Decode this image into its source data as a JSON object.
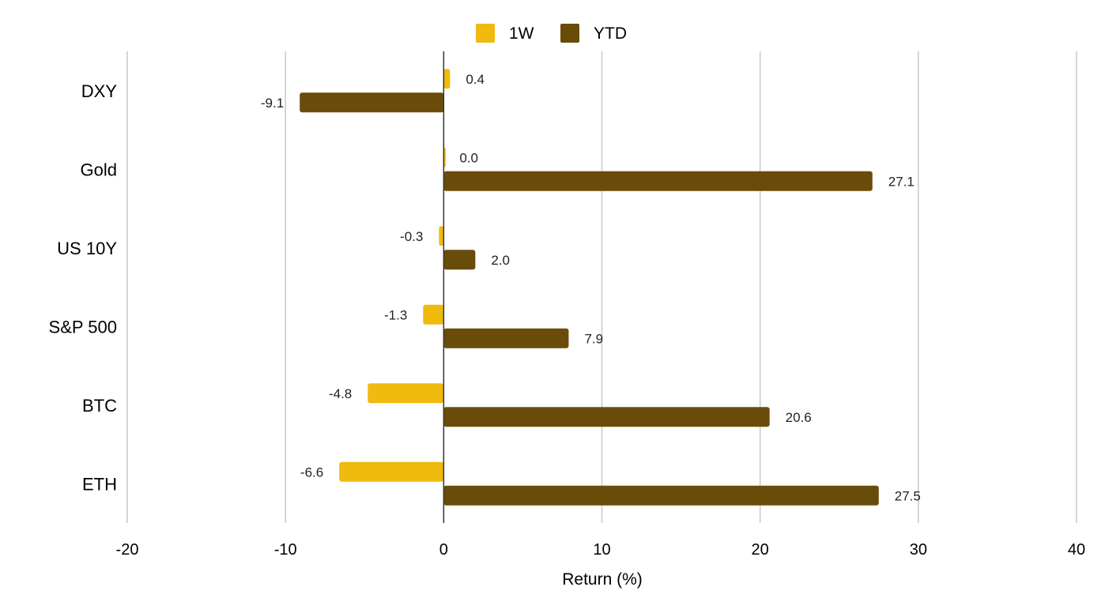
{
  "chart_data": {
    "type": "bar",
    "orientation": "horizontal",
    "title": "",
    "xlabel": "Return (%)",
    "ylabel": "",
    "xlim": [
      -20,
      40
    ],
    "xticks": [
      -20,
      -10,
      0,
      10,
      20,
      30,
      40
    ],
    "xtick_labels": [
      "-20",
      "-10",
      "0",
      "10",
      "20",
      "30",
      "40"
    ],
    "grid": true,
    "legend_position": "top-center",
    "categories": [
      "DXY",
      "Gold",
      "US 10Y",
      "S&P 500",
      "BTC",
      "ETH"
    ],
    "series": [
      {
        "name": "1W",
        "color": "#F0BA0E",
        "values": [
          0.4,
          0.0,
          -0.3,
          -1.3,
          -4.8,
          -6.6
        ],
        "labels": [
          "0.4",
          "0.0",
          "-0.3",
          "-1.3",
          "-4.8",
          "-6.6"
        ]
      },
      {
        "name": "YTD",
        "color": "#6A4C0A",
        "values": [
          -9.1,
          27.1,
          2.0,
          7.9,
          20.6,
          27.5
        ],
        "labels": [
          "-9.1",
          "27.1",
          "2.0",
          "7.9",
          "20.6",
          "27.5"
        ]
      }
    ]
  }
}
